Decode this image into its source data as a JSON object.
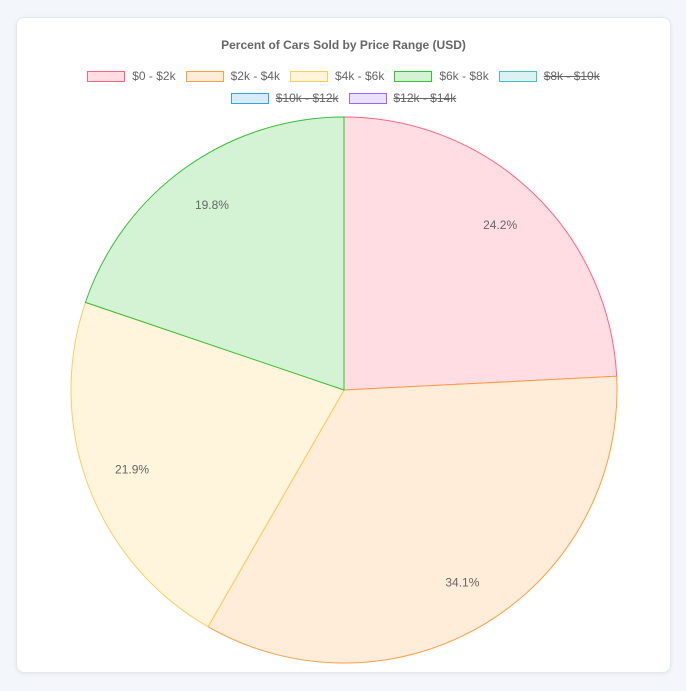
{
  "chart_data": {
    "type": "pie",
    "title": "Percent of Cars Sold by Price Range (USD)",
    "legend_position": "top",
    "slices": [
      {
        "label": "$0 - $2k",
        "value": 24.2,
        "display": "24.2%",
        "color": "#ff6384",
        "fill": "#ffdde3",
        "hidden": false
      },
      {
        "label": "$2k - $4k",
        "value": 34.1,
        "display": "34.1%",
        "color": "#ff9f40",
        "fill": "#ffecd9",
        "hidden": false
      },
      {
        "label": "$4k - $6k",
        "value": 21.9,
        "display": "21.9%",
        "color": "#ffcd56",
        "fill": "#fff5dd",
        "hidden": false
      },
      {
        "label": "$6k - $8k",
        "value": 19.8,
        "display": "19.8%",
        "color": "#33c233",
        "fill": "#d4f3d4",
        "hidden": false
      },
      {
        "label": "$8k - $10k",
        "value": 0,
        "display": "",
        "color": "#4bc0c0",
        "fill": "#dbf2f2",
        "hidden": true
      },
      {
        "label": "$10k - $12k",
        "value": 0,
        "display": "",
        "color": "#36a2eb",
        "fill": "#d7ecfb",
        "hidden": true
      },
      {
        "label": "$12k - $14k",
        "value": 0,
        "display": "",
        "color": "#9966ff",
        "fill": "#ebe0ff",
        "hidden": true
      }
    ]
  }
}
